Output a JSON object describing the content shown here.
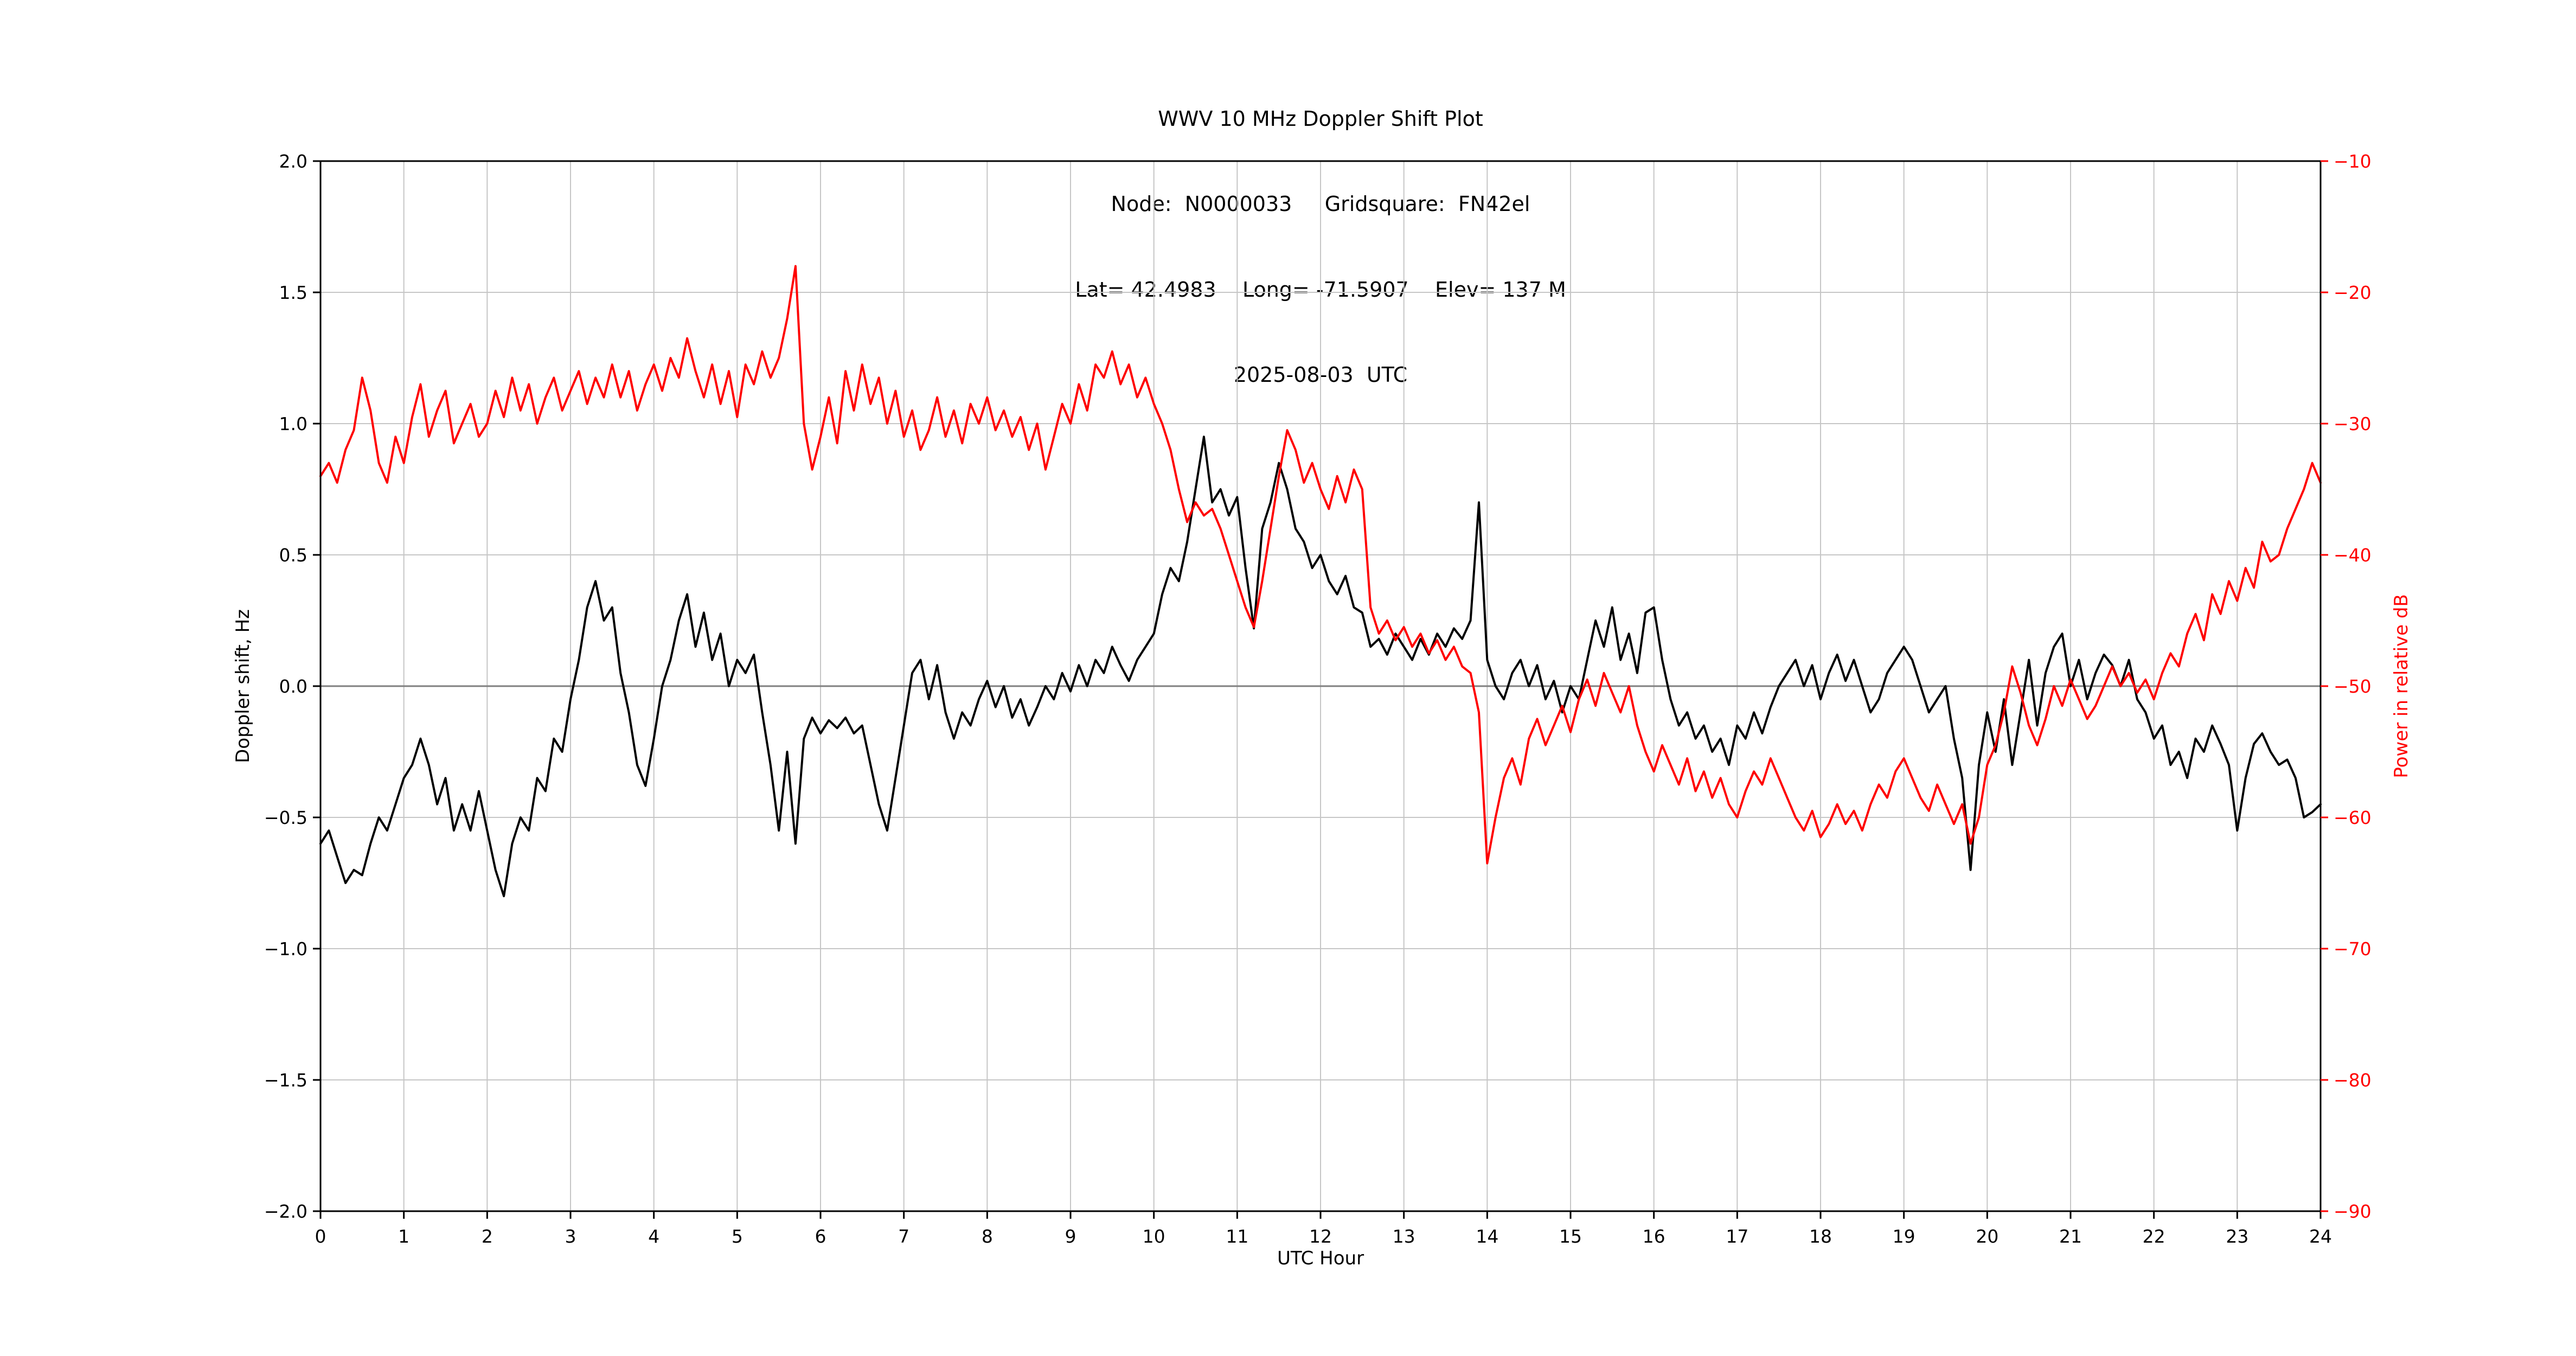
{
  "header": {
    "lines": [
      "WWV 10 MHz Doppler Shift Plot",
      "Node:  N0000033     Gridsquare:  FN42el",
      "Lat= 42.4983    Long= -71.5907    Elev= 137 M",
      "2025-08-03  UTC"
    ]
  },
  "chart_data": {
    "type": "line",
    "title": "WWV 10 MHz Doppler Shift Plot",
    "xlabel": "UTC Hour",
    "ylabel_left": "Doppler shift, Hz",
    "ylabel_right": "Power in relative dB",
    "xlim": [
      0,
      24
    ],
    "ylim_left": [
      -2.0,
      2.0
    ],
    "ylim_right": [
      -90,
      -10
    ],
    "grid": true,
    "xticks": [
      0,
      1,
      2,
      3,
      4,
      5,
      6,
      7,
      8,
      9,
      10,
      11,
      12,
      13,
      14,
      15,
      16,
      17,
      18,
      19,
      20,
      21,
      22,
      23,
      24
    ],
    "xtick_labels": [
      "0",
      "1",
      "2",
      "3",
      "4",
      "5",
      "6",
      "7",
      "8",
      "9",
      "10",
      "11",
      "12",
      "13",
      "14",
      "15",
      "16",
      "17",
      "18",
      "19",
      "20",
      "21",
      "22",
      "23",
      "24"
    ],
    "yticks_left": [
      2.0,
      1.5,
      1.0,
      0.5,
      0.0,
      -0.5,
      -1.0,
      -1.5,
      -2.0
    ],
    "ytick_labels_left": [
      "2.0",
      "1.5",
      "1.0",
      "0.5",
      "0.0",
      "−0.5",
      "−1.0",
      "−1.5",
      "−2.0"
    ],
    "yticks_right": [
      -10,
      -20,
      -30,
      -40,
      -50,
      -60,
      -70,
      -80,
      -90
    ],
    "ytick_labels_right": [
      "−10",
      "−20",
      "−30",
      "−40",
      "−50",
      "−60",
      "−70",
      "−80",
      "−90"
    ],
    "style": {
      "grid_color": "#c6c6c6",
      "zero_line_color": "#7f7f7f",
      "axis_color": "#000000",
      "right_axis_color": "#ff0000",
      "doppler_color": "#000000",
      "power_color": "#ff0000"
    },
    "x_start": 0,
    "x_step": 0.1,
    "series": [
      {
        "name": "Doppler shift",
        "axis": "left",
        "units": "Hz",
        "color": "#000000",
        "values": [
          -0.6,
          -0.55,
          -0.65,
          -0.75,
          -0.7,
          -0.72,
          -0.6,
          -0.5,
          -0.55,
          -0.45,
          -0.35,
          -0.3,
          -0.2,
          -0.3,
          -0.45,
          -0.35,
          -0.55,
          -0.45,
          -0.55,
          -0.4,
          -0.55,
          -0.7,
          -0.8,
          -0.6,
          -0.5,
          -0.55,
          -0.35,
          -0.4,
          -0.2,
          -0.25,
          -0.05,
          0.1,
          0.3,
          0.4,
          0.25,
          0.3,
          0.05,
          -0.1,
          -0.3,
          -0.38,
          -0.2,
          0.0,
          0.1,
          0.25,
          0.35,
          0.15,
          0.28,
          0.1,
          0.2,
          0.0,
          0.1,
          0.05,
          0.12,
          -0.1,
          -0.3,
          -0.55,
          -0.25,
          -0.6,
          -0.2,
          -0.12,
          -0.18,
          -0.13,
          -0.16,
          -0.12,
          -0.18,
          -0.15,
          -0.3,
          -0.45,
          -0.55,
          -0.35,
          -0.15,
          0.05,
          0.1,
          -0.05,
          0.08,
          -0.1,
          -0.2,
          -0.1,
          -0.15,
          -0.05,
          0.02,
          -0.08,
          0.0,
          -0.12,
          -0.05,
          -0.15,
          -0.08,
          0.0,
          -0.05,
          0.05,
          -0.02,
          0.08,
          0.0,
          0.1,
          0.05,
          0.15,
          0.08,
          0.02,
          0.1,
          0.15,
          0.2,
          0.35,
          0.45,
          0.4,
          0.55,
          0.75,
          0.95,
          0.7,
          0.75,
          0.65,
          0.72,
          0.45,
          0.22,
          0.6,
          0.7,
          0.85,
          0.75,
          0.6,
          0.55,
          0.45,
          0.5,
          0.4,
          0.35,
          0.42,
          0.3,
          0.28,
          0.15,
          0.18,
          0.12,
          0.2,
          0.15,
          0.1,
          0.18,
          0.12,
          0.2,
          0.15,
          0.22,
          0.18,
          0.25,
          0.7,
          0.1,
          0.0,
          -0.05,
          0.05,
          0.1,
          0.0,
          0.08,
          -0.05,
          0.02,
          -0.1,
          0.0,
          -0.05,
          0.1,
          0.25,
          0.15,
          0.3,
          0.1,
          0.2,
          0.05,
          0.28,
          0.3,
          0.1,
          -0.05,
          -0.15,
          -0.1,
          -0.2,
          -0.15,
          -0.25,
          -0.2,
          -0.3,
          -0.15,
          -0.2,
          -0.1,
          -0.18,
          -0.08,
          0.0,
          0.05,
          0.1,
          0.0,
          0.08,
          -0.05,
          0.05,
          0.12,
          0.02,
          0.1,
          0.0,
          -0.1,
          -0.05,
          0.05,
          0.1,
          0.15,
          0.1,
          0.0,
          -0.1,
          -0.05,
          0.0,
          -0.2,
          -0.35,
          -0.7,
          -0.3,
          -0.1,
          -0.25,
          -0.05,
          -0.3,
          -0.1,
          0.1,
          -0.15,
          0.05,
          0.15,
          0.2,
          0.0,
          0.1,
          -0.05,
          0.05,
          0.12,
          0.08,
          0.0,
          0.1,
          -0.05,
          -0.1,
          -0.2,
          -0.15,
          -0.3,
          -0.25,
          -0.35,
          -0.2,
          -0.25,
          -0.15,
          -0.22,
          -0.3,
          -0.55,
          -0.35,
          -0.22,
          -0.18,
          -0.25,
          -0.3,
          -0.28,
          -0.35,
          -0.5,
          -0.48,
          -0.45
        ]
      },
      {
        "name": "Power",
        "axis": "right",
        "units": "dB",
        "color": "#ff0000",
        "values": [
          -34,
          -33,
          -34.5,
          -32,
          -30.5,
          -26.5,
          -29,
          -33,
          -34.5,
          -31,
          -33,
          -29.5,
          -27,
          -31,
          -29,
          -27.5,
          -31.5,
          -30,
          -28.5,
          -31,
          -30,
          -27.5,
          -29.5,
          -26.5,
          -29,
          -27,
          -30,
          -28,
          -26.5,
          -29,
          -27.5,
          -26,
          -28.5,
          -26.5,
          -28,
          -25.5,
          -28,
          -26,
          -29,
          -27,
          -25.5,
          -27.5,
          -25,
          -26.5,
          -23.5,
          -26,
          -28,
          -25.5,
          -28.5,
          -26,
          -29.5,
          -25.5,
          -27,
          -24.5,
          -26.5,
          -25,
          -22,
          -18,
          -30,
          -33.5,
          -31,
          -28,
          -31.5,
          -26,
          -29,
          -25.5,
          -28.5,
          -26.5,
          -30,
          -27.5,
          -31,
          -29,
          -32,
          -30.5,
          -28,
          -31,
          -29,
          -31.5,
          -28.5,
          -30,
          -28,
          -30.5,
          -29,
          -31,
          -29.5,
          -32,
          -30,
          -33.5,
          -31,
          -28.5,
          -30,
          -27,
          -29,
          -25.5,
          -26.5,
          -24.5,
          -27,
          -25.5,
          -28,
          -26.5,
          -28.5,
          -30,
          -32,
          -35,
          -37.5,
          -36,
          -37,
          -36.5,
          -38,
          -40,
          -42,
          -44,
          -45.5,
          -42,
          -38,
          -34,
          -30.5,
          -32,
          -34.5,
          -33,
          -35,
          -36.5,
          -34,
          -36,
          -33.5,
          -35,
          -44,
          -46,
          -45,
          -46.5,
          -45.5,
          -47,
          -46,
          -47.5,
          -46.5,
          -48,
          -47,
          -48.5,
          -49,
          -52,
          -63.5,
          -60,
          -57,
          -55.5,
          -57.5,
          -54,
          -52.5,
          -54.5,
          -53,
          -51.5,
          -53.5,
          -51,
          -49.5,
          -51.5,
          -49,
          -50.5,
          -52,
          -50,
          -53,
          -55,
          -56.5,
          -54.5,
          -56,
          -57.5,
          -55.5,
          -58,
          -56.5,
          -58.5,
          -57,
          -59,
          -60,
          -58,
          -56.5,
          -57.5,
          -55.5,
          -57,
          -58.5,
          -60,
          -61,
          -59.5,
          -61.5,
          -60.5,
          -59,
          -60.5,
          -59.5,
          -61,
          -59,
          -57.5,
          -58.5,
          -56.5,
          -55.5,
          -57,
          -58.5,
          -59.5,
          -57.5,
          -59,
          -60.5,
          -59,
          -62,
          -60,
          -56,
          -54.5,
          -52,
          -48.5,
          -50.5,
          -53,
          -54.5,
          -52.5,
          -50,
          -51.5,
          -49.5,
          -51,
          -52.5,
          -51.5,
          -50,
          -48.5,
          -50,
          -49,
          -50.5,
          -49.5,
          -51,
          -49,
          -47.5,
          -48.5,
          -46,
          -44.5,
          -46.5,
          -43,
          -44.5,
          -42,
          -43.5,
          -41,
          -42.5,
          -39,
          -40.5,
          -40,
          -38,
          -36.5,
          -35,
          -33,
          -34.5
        ]
      }
    ]
  }
}
